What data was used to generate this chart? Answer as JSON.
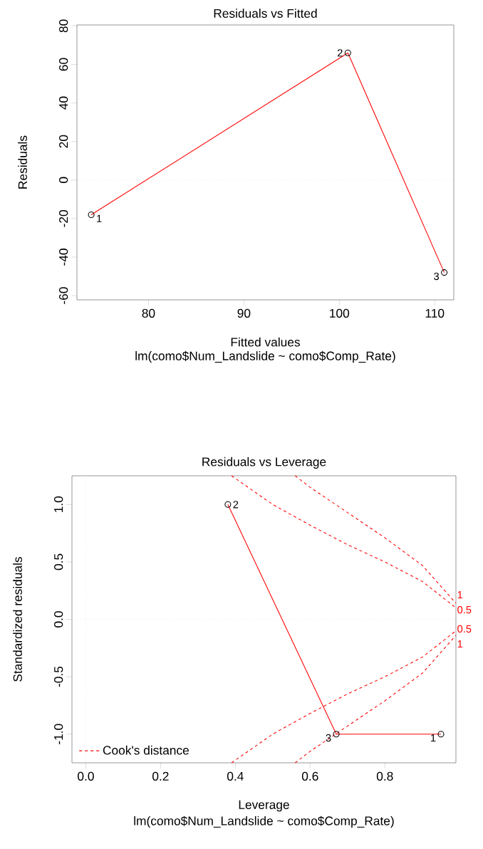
{
  "chart_data": [
    {
      "type": "scatter",
      "title": "Residuals vs Fitted",
      "xlabel": "Fitted values",
      "ylabel": "Residuals",
      "xlim": [
        72.5,
        112
      ],
      "ylim": [
        -62.2,
        80.5
      ],
      "xticks": [
        80,
        90,
        100,
        110
      ],
      "yticks": [
        -60,
        -40,
        -20,
        0,
        20,
        40,
        60,
        80
      ],
      "series": [
        {
          "marker": "circle",
          "color": "#000000",
          "x": [
            74,
            100.9,
            111
          ],
          "values": [
            -18,
            66,
            -48
          ]
        },
        {
          "type": "line",
          "color": "#ff0000",
          "x": [
            74,
            100.9,
            111
          ],
          "values": [
            -18,
            66,
            -48
          ]
        }
      ],
      "ref_lines": [
        {
          "axis": "y",
          "value": 0,
          "color": "#c8c8c8",
          "line_style": "dotted"
        }
      ],
      "annotations": [
        {
          "text": "1",
          "x": 74,
          "y": -18
        },
        {
          "text": "2",
          "x": 100.9,
          "y": 66
        },
        {
          "text": "3",
          "x": 111,
          "y": -48
        },
        "lm(como$Num_Landslide ~ como$Comp_Rate)"
      ]
    },
    {
      "type": "scatter",
      "title": "Residuals vs Leverage",
      "xlabel": "Leverage",
      "ylabel": "Standardized residuals",
      "xlim": [
        -0.037,
        0.99
      ],
      "ylim": [
        -1.25,
        1.25
      ],
      "xticks": [
        {
          "value": 0,
          "label": "0.0"
        },
        0.2,
        0.4,
        0.6,
        0.8
      ],
      "yticks": [
        {
          "value": -1,
          "label": "-1.0"
        },
        -0.5,
        {
          "value": 0,
          "label": "0.0"
        },
        0.5,
        {
          "value": 1,
          "label": "1.0"
        }
      ],
      "legend": "bottom left",
      "series": [
        {
          "marker": "circle",
          "color": "#000000",
          "x": [
            0.38,
            0.67,
            0.95
          ],
          "values": [
            1.0,
            -1.0,
            -1.0
          ]
        },
        {
          "type": "line",
          "color": "#ff0000",
          "x": [
            0.38,
            0.67,
            0.95
          ],
          "values": [
            1.0,
            -1.0,
            -1.0
          ]
        },
        {
          "type": "line",
          "name": "Cook's distance",
          "line_style": "dashed",
          "color": "#ff0000",
          "x": [
            0.39,
            0.5,
            0.6,
            0.7,
            0.8,
            0.9,
            0.99
          ],
          "values": [
            1.25,
            1.0,
            0.82,
            0.65,
            0.5,
            0.33,
            0.1
          ]
        },
        {
          "type": "line",
          "line_style": "dashed",
          "color": "#ff0000",
          "x": [
            0.56,
            0.6,
            0.7,
            0.8,
            0.9,
            0.99
          ],
          "values": [
            1.25,
            1.15,
            0.93,
            0.71,
            0.47,
            0.14
          ]
        },
        {
          "type": "line",
          "line_style": "dashed",
          "color": "#ff0000",
          "x": [
            0.39,
            0.5,
            0.6,
            0.7,
            0.8,
            0.9,
            0.99
          ],
          "values": [
            -1.25,
            -1.0,
            -0.82,
            -0.65,
            -0.5,
            -0.33,
            -0.1
          ]
        },
        {
          "type": "line",
          "line_style": "dashed",
          "color": "#ff0000",
          "x": [
            0.56,
            0.6,
            0.7,
            0.8,
            0.9,
            0.99
          ],
          "values": [
            -1.25,
            -1.15,
            -0.93,
            -0.71,
            -0.47,
            -0.14
          ]
        }
      ],
      "ref_lines": [
        {
          "axis": "x",
          "value": 0,
          "color": "#c8c8c8",
          "line_style": "dotted"
        },
        {
          "axis": "y",
          "value": 0,
          "color": "#c8c8c8",
          "line_style": "dotted"
        }
      ],
      "annotations": [
        {
          "text": "2",
          "x": 0.38,
          "y": 1.0
        },
        {
          "text": "3",
          "x": 0.67,
          "y": -1.0
        },
        {
          "text": "1",
          "x": 0.95,
          "y": -1.0
        },
        {
          "text": "1",
          "x": 0.99,
          "y": 0.14
        },
        {
          "text": "0.5",
          "x": 0.99,
          "y": 0.1
        },
        {
          "text": "0.5",
          "x": 0.99,
          "y": -0.1
        },
        {
          "text": "1",
          "x": 0.99,
          "y": -0.14
        },
        "lm(como$Num_Landslide ~ como$Comp_Rate)"
      ]
    }
  ]
}
